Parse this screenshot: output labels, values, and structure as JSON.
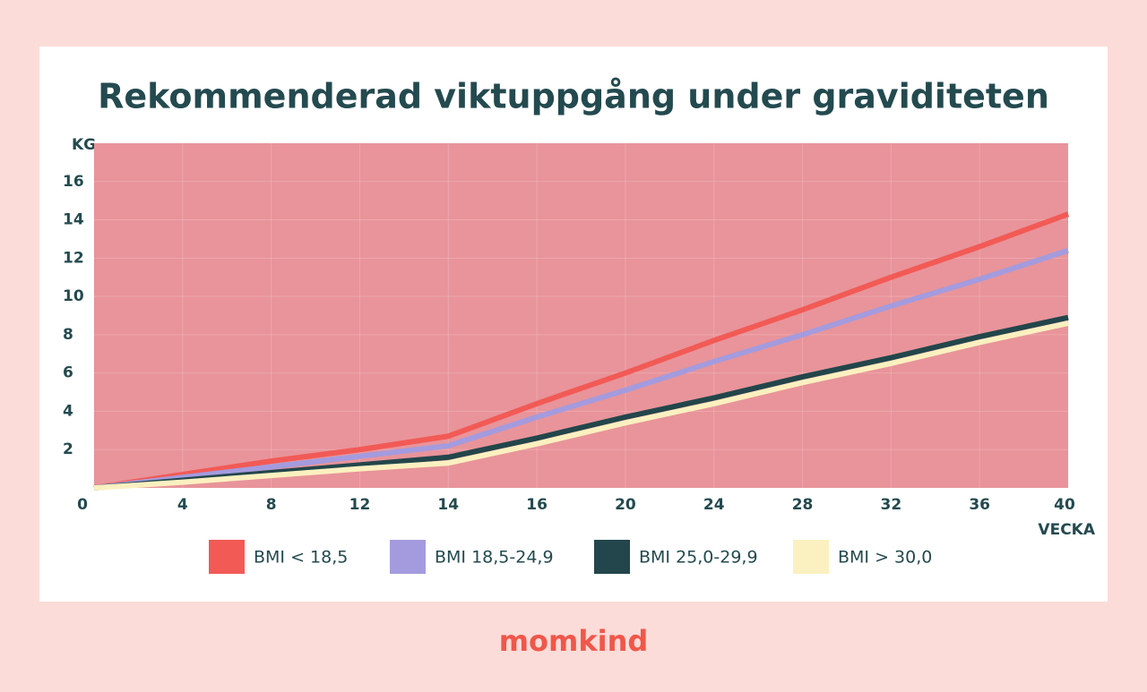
{
  "chart_data": {
    "type": "line",
    "title": "Rekommenderad viktuppgång under graviditeten",
    "y_label": "KG",
    "x_label": "VECKA",
    "categories": [
      "0",
      "4",
      "8",
      "12",
      "14",
      "16",
      "20",
      "24",
      "28",
      "32",
      "36",
      "40"
    ],
    "series": [
      {
        "name": "BMI < 18,5",
        "color": "#f25a55",
        "values": [
          0,
          0.7,
          1.4,
          2.0,
          2.7,
          4.4,
          6.0,
          7.7,
          9.3,
          11.0,
          12.6,
          14.3
        ]
      },
      {
        "name": "BMI 18,5-24,9",
        "color": "#a49bde",
        "values": [
          0,
          0.55,
          1.1,
          1.65,
          2.2,
          3.7,
          5.1,
          6.6,
          8.0,
          9.5,
          10.9,
          12.4
        ]
      },
      {
        "name": "BMI 25,0-29,9",
        "color": "#22464b",
        "values": [
          0,
          0.4,
          0.8,
          1.2,
          1.6,
          2.6,
          3.7,
          4.7,
          5.8,
          6.8,
          7.9,
          8.9
        ]
      },
      {
        "name": "BMI > 30,0",
        "color": "#fbf0c0",
        "values": [
          0,
          0.3,
          0.65,
          1.0,
          1.3,
          2.3,
          3.4,
          4.4,
          5.5,
          6.5,
          7.6,
          8.6
        ]
      }
    ],
    "ylim": [
      0,
      18
    ],
    "yticks": [
      2,
      4,
      6,
      8,
      10,
      12,
      14,
      16
    ],
    "grid": true,
    "plot_color": "#e8949a"
  },
  "brand": "momkind"
}
